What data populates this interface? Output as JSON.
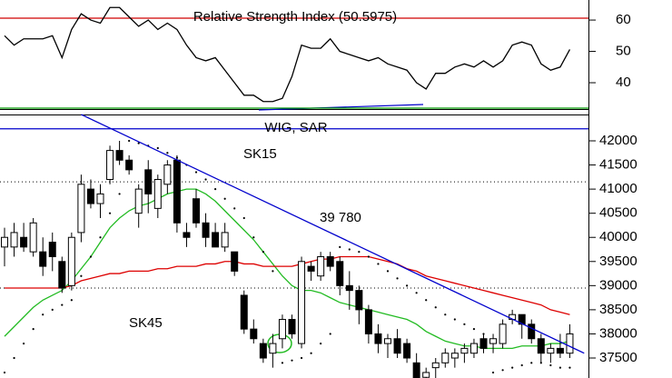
{
  "chart_data": [
    {
      "type": "line",
      "title": "Relative Strength Index (50.5975)",
      "color": "#000000",
      "values": [
        55,
        52,
        54,
        54,
        54,
        55,
        48,
        57,
        62,
        60,
        59,
        64,
        64,
        61,
        58,
        60,
        57,
        59,
        57,
        52,
        48,
        47,
        48,
        44,
        40,
        36,
        36,
        34,
        34,
        35,
        42,
        52,
        51,
        51,
        54,
        50,
        49,
        48,
        47,
        48,
        46,
        45,
        44,
        40,
        38,
        43,
        43,
        45,
        46,
        45,
        47,
        45,
        47,
        52,
        53,
        52,
        46,
        44,
        45,
        50.6
      ],
      "ylim": [
        31.6,
        66.4
      ],
      "yticks": [
        40,
        50,
        60
      ],
      "levels": [
        {
          "value": 60.6,
          "color": "#d00000"
        },
        {
          "value": 31.9,
          "color": "#009900"
        }
      ]
    },
    {
      "type": "candlestick",
      "title": "WIG, SAR",
      "open": [
        39800,
        39800,
        40000,
        39700,
        39700,
        39900,
        39500,
        39000,
        40100,
        41000,
        40700,
        41200,
        41800,
        41600,
        40500,
        41400,
        40600,
        41100,
        41600,
        40100,
        40800,
        40300,
        40100,
        39800,
        39700,
        38800,
        38100,
        37800,
        37600,
        37900,
        38300,
        37800,
        39400,
        39200,
        39600,
        39500,
        39000,
        38900,
        38500,
        38000,
        37800,
        37900,
        37800,
        37400,
        37100,
        37300,
        37400,
        37500,
        37600,
        37600,
        37900,
        37800,
        37800,
        38300,
        38400,
        38200,
        37900,
        37600,
        37700,
        37600
      ],
      "high": [
        40200,
        40300,
        40300,
        40400,
        40000,
        40100,
        39600,
        40100,
        41300,
        41200,
        41100,
        41900,
        42000,
        41700,
        41100,
        41600,
        41300,
        41600,
        41700,
        40300,
        41000,
        40500,
        40300,
        40300,
        39700,
        38900,
        38300,
        37900,
        38000,
        38400,
        38400,
        39600,
        39500,
        39700,
        39700,
        39600,
        39300,
        39000,
        38600,
        38200,
        38000,
        38100,
        37900,
        37600,
        37300,
        37500,
        37700,
        37700,
        37800,
        37900,
        38000,
        38000,
        38300,
        38500,
        38400,
        38300,
        38000,
        37800,
        38000,
        38200
      ],
      "low": [
        39400,
        39600,
        39700,
        39600,
        39200,
        39300,
        38850,
        38900,
        39900,
        40600,
        40400,
        41100,
        41500,
        41300,
        40200,
        40500,
        40400,
        40900,
        40100,
        39800,
        40200,
        39800,
        39800,
        39700,
        39200,
        38000,
        37800,
        37400,
        37300,
        37700,
        37900,
        37700,
        39100,
        39100,
        39300,
        38800,
        38500,
        38200,
        37800,
        37600,
        37500,
        37500,
        37400,
        36900,
        36800,
        37000,
        37300,
        37300,
        37400,
        37500,
        37600,
        37600,
        37700,
        38200,
        37900,
        37800,
        37400,
        37400,
        37500,
        37500
      ],
      "close": [
        40000,
        40100,
        39800,
        40300,
        39400,
        39600,
        38950,
        40000,
        41100,
        40700,
        40900,
        41800,
        41600,
        41400,
        41000,
        40900,
        41200,
        41500,
        40300,
        40000,
        40300,
        40000,
        39800,
        40100,
        39300,
        38100,
        37900,
        37500,
        37800,
        38300,
        38000,
        39500,
        39300,
        39600,
        39400,
        39000,
        38900,
        38500,
        38000,
        37800,
        37900,
        37600,
        37500,
        37000,
        37200,
        37400,
        37600,
        37600,
        37700,
        37800,
        37700,
        37900,
        38200,
        38400,
        38200,
        37900,
        37600,
        37700,
        37600,
        38000
      ],
      "ylim": [
        37086,
        42546
      ],
      "yticks": [
        37500,
        38000,
        38500,
        39000,
        39500,
        40000,
        40500,
        41000,
        41500,
        42000
      ],
      "series": [
        {
          "name": "SK15",
          "color": "#22bb22",
          "values": [
            37950,
            38150,
            38350,
            38550,
            38700,
            38800,
            38900,
            39100,
            39350,
            39600,
            39900,
            40200,
            40400,
            40550,
            40650,
            40700,
            40800,
            40900,
            40950,
            41000,
            41000,
            40900,
            40750,
            40550,
            40350,
            40150,
            39950,
            39700,
            39450,
            39200,
            39000,
            38900,
            38900,
            38850,
            38750,
            38650,
            38600,
            38550,
            38500,
            38450,
            38400,
            38350,
            38300,
            38200,
            38050,
            37950,
            37850,
            37800,
            37750,
            37750,
            37700,
            37700,
            37700,
            37700,
            37750,
            37750,
            37750,
            37800,
            37800,
            37850
          ]
        },
        {
          "name": "SK45",
          "color": "#dd0000",
          "values": [
            38950,
            38950,
            38950,
            38950,
            38950,
            38950,
            38950,
            39000,
            39100,
            39150,
            39200,
            39250,
            39250,
            39300,
            39300,
            39300,
            39350,
            39350,
            39400,
            39400,
            39400,
            39450,
            39450,
            39500,
            39500,
            39450,
            39450,
            39400,
            39400,
            39400,
            39400,
            39450,
            39500,
            39550,
            39550,
            39600,
            39600,
            39600,
            39600,
            39550,
            39500,
            39450,
            39350,
            39300,
            39200,
            39150,
            39100,
            39050,
            39000,
            38950,
            38900,
            38850,
            38800,
            38750,
            38700,
            38650,
            38600,
            38500,
            38450,
            38400
          ]
        }
      ],
      "sar": [
        37200,
        37500,
        37800,
        38100,
        38400,
        38500,
        38600,
        38700,
        39200,
        39600,
        40000,
        40500,
        40900,
        42000,
        41950,
        41900,
        41850,
        41750,
        41650,
        41500,
        41350,
        41200,
        41000,
        40800,
        40600,
        40400,
        40000,
        39700,
        39300,
        37400,
        37450,
        37500,
        37600,
        37800,
        38000,
        39800,
        39750,
        39700,
        39600,
        39450,
        39300,
        39150,
        39000,
        38850,
        38700,
        38550,
        38400,
        38300,
        38200,
        38100,
        38000,
        37200,
        37250,
        37300,
        37350,
        37400,
        37400,
        37350,
        37300,
        37300
      ],
      "trendline": {
        "label": "39 780",
        "color": "#0000cc",
        "start": [
          8,
          42546
        ],
        "end": [
          60.5,
          37600
        ]
      },
      "hlines": [
        {
          "value": 42250,
          "color": "#0000cc",
          "dotted": false
        },
        {
          "value": 41150,
          "color": "#000000",
          "dotted": true
        },
        {
          "value": 38950,
          "color": "#000000",
          "dotted": true
        }
      ]
    }
  ]
}
